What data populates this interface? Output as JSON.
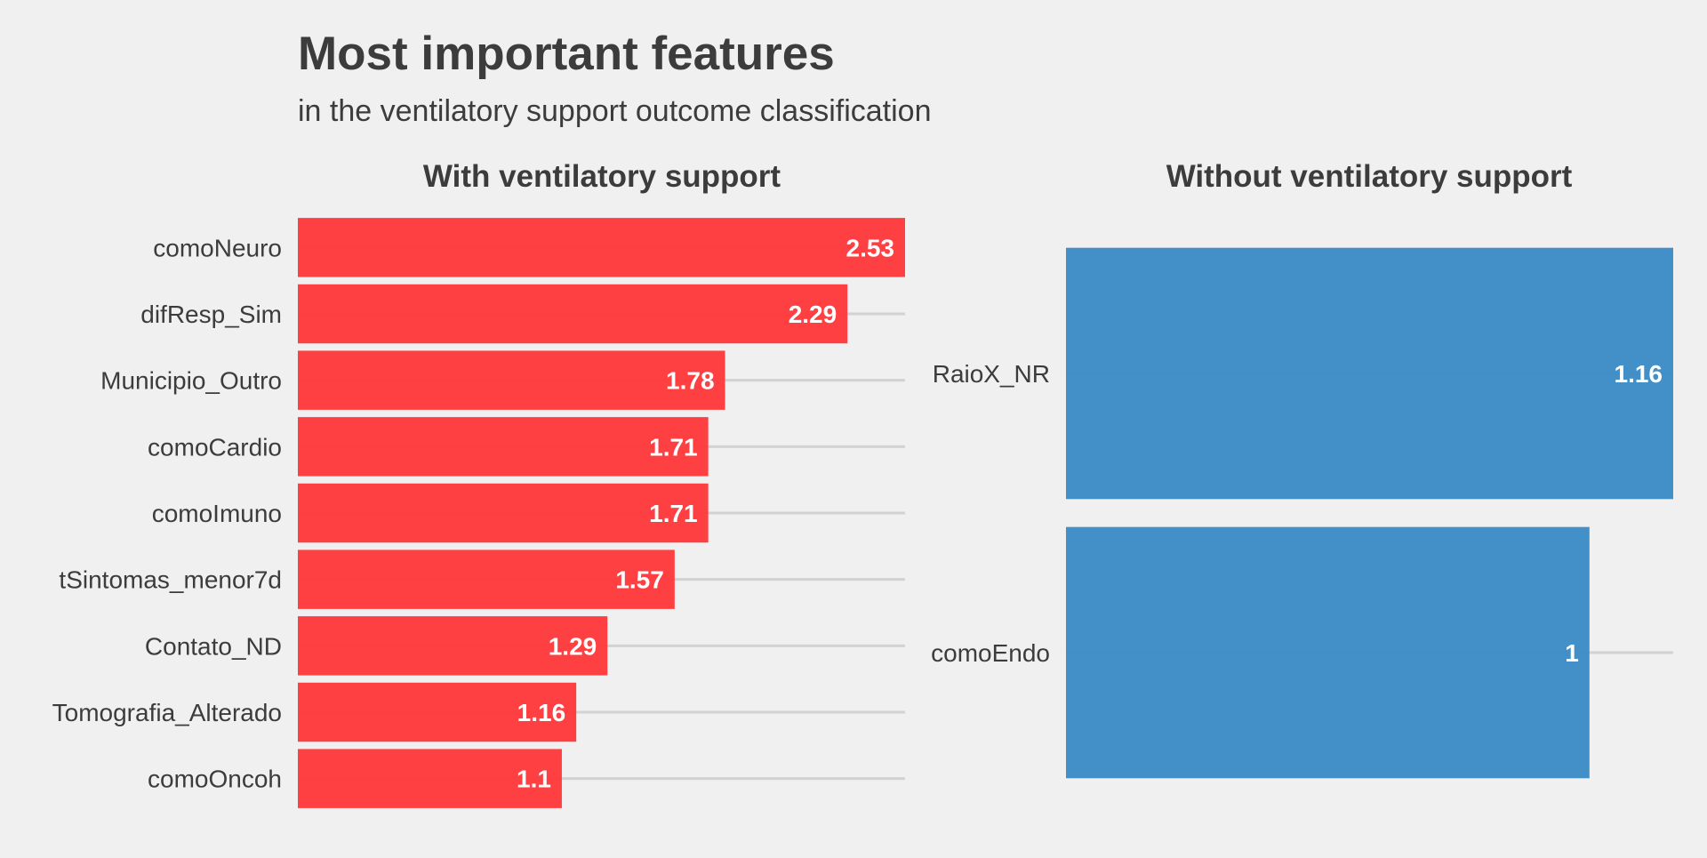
{
  "chart_data": {
    "type": "bar",
    "orientation": "horizontal",
    "title": "Most important features",
    "subtitle": "in the ventilatory support outcome classification",
    "panels": [
      {
        "title": "With ventilatory support",
        "color": "#ff3a3c",
        "categories": [
          "comoNeuro",
          "difResp_Sim",
          "Municipio_Outro",
          "comoCardio",
          "comoImuno",
          "tSintomas_menor7d",
          "Contato_ND",
          "Tomografia_Alterado",
          "comoOncoh"
        ],
        "values": [
          2.53,
          2.29,
          1.78,
          1.71,
          1.71,
          1.57,
          1.29,
          1.16,
          1.1
        ],
        "value_labels": [
          "2.53",
          "2.29",
          "1.78",
          "1.71",
          "1.71",
          "1.57",
          "1.29",
          "1.16",
          "1.1"
        ],
        "xlim": [
          0,
          2.53
        ]
      },
      {
        "title": "Without ventilatory support",
        "color": "#3d8bc6",
        "categories": [
          "RaioX_NR",
          "comoEndo"
        ],
        "values": [
          1.16,
          1
        ],
        "value_labels": [
          "1.16",
          "1"
        ],
        "xlim": [
          0,
          1.16
        ]
      }
    ],
    "grid": "horizontal lines at category centers",
    "legend": "none"
  }
}
